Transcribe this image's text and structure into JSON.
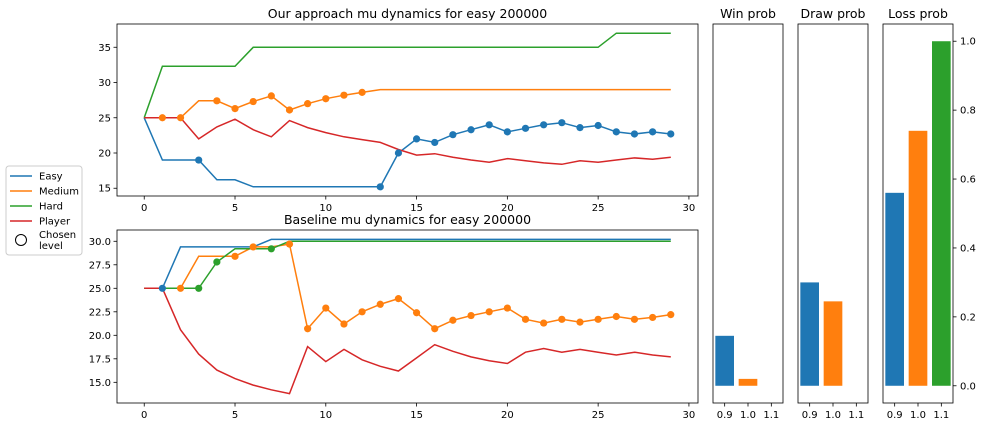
{
  "colors": {
    "easy": "#1f77b4",
    "medium": "#ff7f0e",
    "hard": "#2ca02c",
    "player": "#d62728"
  },
  "legend": {
    "placement": "left",
    "entries": [
      "Easy",
      "Medium",
      "Hard",
      "Player"
    ],
    "chosen_label": [
      "Chosen",
      "level"
    ]
  },
  "chart_data": [
    {
      "type": "line",
      "title": "Our approach mu dynamics for easy 200000",
      "xlim": [
        -1.5,
        30.5
      ],
      "ylim": [
        13.9,
        38.3
      ],
      "xticks": [
        0,
        5,
        10,
        15,
        20,
        25,
        30
      ],
      "yticks": [
        15,
        20,
        25,
        30,
        35
      ],
      "x": [
        0,
        1,
        2,
        3,
        4,
        5,
        6,
        7,
        8,
        9,
        10,
        11,
        12,
        13,
        14,
        15,
        16,
        17,
        18,
        19,
        20,
        21,
        22,
        23,
        24,
        25,
        26,
        27,
        28,
        29
      ],
      "series": [
        {
          "name": "Easy",
          "color_key": "easy",
          "values": [
            25,
            19,
            19,
            19,
            16.2,
            16.2,
            15.2,
            15.2,
            15.2,
            15.2,
            15.2,
            15.2,
            15.2,
            15.2,
            20,
            22,
            21.5,
            22.6,
            23.3,
            24,
            23,
            23.5,
            24,
            24.3,
            23.6,
            23.9,
            23,
            22.7,
            23,
            22.7
          ]
        },
        {
          "name": "Medium",
          "color_key": "medium",
          "values": [
            25,
            25,
            25,
            27.4,
            27.4,
            26.3,
            27.3,
            28.1,
            26.1,
            27,
            27.7,
            28.2,
            28.6,
            29,
            29,
            29,
            29,
            29,
            29,
            29,
            29,
            29,
            29,
            29,
            29,
            29,
            29,
            29,
            29,
            29
          ]
        },
        {
          "name": "Hard",
          "color_key": "hard",
          "values": [
            25,
            32.3,
            32.3,
            32.3,
            32.3,
            32.3,
            35,
            35,
            35,
            35,
            35,
            35,
            35,
            35,
            35,
            35,
            35,
            35,
            35,
            35,
            35,
            35,
            35,
            35,
            35,
            35,
            37,
            37,
            37,
            37
          ]
        },
        {
          "name": "Player",
          "color_key": "player",
          "values": [
            25,
            25,
            25,
            22,
            23.7,
            24.8,
            23.3,
            22.3,
            24.6,
            23.6,
            22.9,
            22.3,
            21.9,
            21.5,
            20.5,
            19.7,
            19.9,
            19.4,
            19,
            18.7,
            19.2,
            18.9,
            18.6,
            18.4,
            18.9,
            18.7,
            19,
            19.3,
            19.1,
            19.4
          ]
        }
      ],
      "chosen": [
        {
          "x": 1,
          "y": 25,
          "color_key": "medium"
        },
        {
          "x": 2,
          "y": 25,
          "color_key": "medium"
        },
        {
          "x": 3,
          "y": 19,
          "color_key": "easy"
        },
        {
          "x": 4,
          "y": 27.4,
          "color_key": "medium"
        },
        {
          "x": 5,
          "y": 26.3,
          "color_key": "medium"
        },
        {
          "x": 6,
          "y": 27.3,
          "color_key": "medium"
        },
        {
          "x": 7,
          "y": 28.1,
          "color_key": "medium"
        },
        {
          "x": 8,
          "y": 26.1,
          "color_key": "medium"
        },
        {
          "x": 9,
          "y": 27,
          "color_key": "medium"
        },
        {
          "x": 10,
          "y": 27.7,
          "color_key": "medium"
        },
        {
          "x": 11,
          "y": 28.2,
          "color_key": "medium"
        },
        {
          "x": 12,
          "y": 28.6,
          "color_key": "medium"
        },
        {
          "x": 13,
          "y": 15.2,
          "color_key": "easy"
        },
        {
          "x": 14,
          "y": 20,
          "color_key": "easy"
        },
        {
          "x": 15,
          "y": 22,
          "color_key": "easy"
        },
        {
          "x": 16,
          "y": 21.5,
          "color_key": "easy"
        },
        {
          "x": 17,
          "y": 22.6,
          "color_key": "easy"
        },
        {
          "x": 18,
          "y": 23.3,
          "color_key": "easy"
        },
        {
          "x": 19,
          "y": 24,
          "color_key": "easy"
        },
        {
          "x": 20,
          "y": 23,
          "color_key": "easy"
        },
        {
          "x": 21,
          "y": 23.5,
          "color_key": "easy"
        },
        {
          "x": 22,
          "y": 24,
          "color_key": "easy"
        },
        {
          "x": 23,
          "y": 24.3,
          "color_key": "easy"
        },
        {
          "x": 24,
          "y": 23.6,
          "color_key": "easy"
        },
        {
          "x": 25,
          "y": 23.9,
          "color_key": "easy"
        },
        {
          "x": 26,
          "y": 23,
          "color_key": "easy"
        },
        {
          "x": 27,
          "y": 22.7,
          "color_key": "easy"
        },
        {
          "x": 28,
          "y": 23,
          "color_key": "easy"
        },
        {
          "x": 29,
          "y": 22.7,
          "color_key": "easy"
        }
      ]
    },
    {
      "type": "line",
      "title": "Baseline mu dynamics for easy 200000",
      "xlim": [
        -1.5,
        30.5
      ],
      "ylim": [
        12.8,
        31.2
      ],
      "xticks": [
        0,
        5,
        10,
        15,
        20,
        25,
        30
      ],
      "yticks": [
        15.0,
        17.5,
        20.0,
        22.5,
        25.0,
        27.5,
        30.0
      ],
      "ytick_labels": [
        "15.0",
        "17.5",
        "20.0",
        "22.5",
        "25.0",
        "27.5",
        "30.0"
      ],
      "x": [
        0,
        1,
        2,
        3,
        4,
        5,
        6,
        7,
        8,
        9,
        10,
        11,
        12,
        13,
        14,
        15,
        16,
        17,
        18,
        19,
        20,
        21,
        22,
        23,
        24,
        25,
        26,
        27,
        28,
        29
      ],
      "series": [
        {
          "name": "Easy",
          "color_key": "easy",
          "values": [
            25,
            25,
            29.4,
            29.4,
            29.4,
            29.4,
            29.4,
            30.2,
            30.2,
            30.2,
            30.2,
            30.2,
            30.2,
            30.2,
            30.2,
            30.2,
            30.2,
            30.2,
            30.2,
            30.2,
            30.2,
            30.2,
            30.2,
            30.2,
            30.2,
            30.2,
            30.2,
            30.2,
            30.2,
            30.2
          ]
        },
        {
          "name": "Medium",
          "color_key": "medium",
          "values": [
            25,
            25,
            25,
            28.4,
            28.4,
            28.4,
            29.4,
            29.4,
            29.7,
            20.7,
            22.9,
            21.2,
            22.5,
            23.3,
            23.9,
            22.4,
            20.7,
            21.6,
            22.1,
            22.5,
            22.9,
            21.7,
            21.3,
            21.7,
            21.4,
            21.7,
            22,
            21.7,
            21.9,
            22.2
          ]
        },
        {
          "name": "Hard",
          "color_key": "hard",
          "values": [
            25,
            25,
            25,
            25,
            27.8,
            29.2,
            29.2,
            29.2,
            30,
            30,
            30,
            30,
            30,
            30,
            30,
            30,
            30,
            30,
            30,
            30,
            30,
            30,
            30,
            30,
            30,
            30,
            30,
            30,
            30,
            30
          ]
        },
        {
          "name": "Player",
          "color_key": "player",
          "values": [
            25,
            25,
            20.6,
            18,
            16.3,
            15.4,
            14.7,
            14.2,
            13.8,
            18.8,
            17.2,
            18.5,
            17.4,
            16.7,
            16.2,
            17.6,
            19,
            18.3,
            17.7,
            17.3,
            17,
            18.2,
            18.6,
            18.2,
            18.5,
            18.2,
            17.9,
            18.2,
            17.9,
            17.7
          ]
        }
      ],
      "chosen": [
        {
          "x": 1,
          "y": 25,
          "color_key": "easy"
        },
        {
          "x": 2,
          "y": 25,
          "color_key": "medium"
        },
        {
          "x": 3,
          "y": 25,
          "color_key": "hard"
        },
        {
          "x": 4,
          "y": 27.8,
          "color_key": "hard"
        },
        {
          "x": 5,
          "y": 28.4,
          "color_key": "medium"
        },
        {
          "x": 6,
          "y": 29.4,
          "color_key": "medium"
        },
        {
          "x": 7,
          "y": 29.2,
          "color_key": "hard"
        },
        {
          "x": 8,
          "y": 29.7,
          "color_key": "medium"
        },
        {
          "x": 9,
          "y": 20.7,
          "color_key": "medium"
        },
        {
          "x": 10,
          "y": 22.9,
          "color_key": "medium"
        },
        {
          "x": 11,
          "y": 21.2,
          "color_key": "medium"
        },
        {
          "x": 12,
          "y": 22.5,
          "color_key": "medium"
        },
        {
          "x": 13,
          "y": 23.3,
          "color_key": "medium"
        },
        {
          "x": 14,
          "y": 23.9,
          "color_key": "medium"
        },
        {
          "x": 15,
          "y": 22.4,
          "color_key": "medium"
        },
        {
          "x": 16,
          "y": 20.7,
          "color_key": "medium"
        },
        {
          "x": 17,
          "y": 21.6,
          "color_key": "medium"
        },
        {
          "x": 18,
          "y": 22.1,
          "color_key": "medium"
        },
        {
          "x": 19,
          "y": 22.5,
          "color_key": "medium"
        },
        {
          "x": 20,
          "y": 22.9,
          "color_key": "medium"
        },
        {
          "x": 21,
          "y": 21.7,
          "color_key": "medium"
        },
        {
          "x": 22,
          "y": 21.3,
          "color_key": "medium"
        },
        {
          "x": 23,
          "y": 21.7,
          "color_key": "medium"
        },
        {
          "x": 24,
          "y": 21.4,
          "color_key": "medium"
        },
        {
          "x": 25,
          "y": 21.7,
          "color_key": "medium"
        },
        {
          "x": 26,
          "y": 22,
          "color_key": "medium"
        },
        {
          "x": 27,
          "y": 21.7,
          "color_key": "medium"
        },
        {
          "x": 28,
          "y": 21.9,
          "color_key": "medium"
        },
        {
          "x": 29,
          "y": 22.2,
          "color_key": "medium"
        }
      ]
    },
    {
      "type": "bar",
      "title": "Win prob",
      "categories": [
        "0.9",
        "1.0",
        "1.1"
      ],
      "values": [
        0.145,
        0.02,
        0
      ],
      "bar_colors": [
        "easy",
        "medium",
        "hard"
      ],
      "ylim": [
        -0.05,
        1.05
      ]
    },
    {
      "type": "bar",
      "title": "Draw prob",
      "categories": [
        "0.9",
        "1.0",
        "1.1"
      ],
      "values": [
        0.3,
        0.245,
        0
      ],
      "bar_colors": [
        "easy",
        "medium",
        "hard"
      ],
      "ylim": [
        -0.05,
        1.05
      ]
    },
    {
      "type": "bar",
      "title": "Loss prob",
      "categories": [
        "0.9",
        "1.0",
        "1.1"
      ],
      "values": [
        0.56,
        0.74,
        1.0
      ],
      "bar_colors": [
        "easy",
        "medium",
        "hard"
      ],
      "ylim": [
        -0.05,
        1.05
      ],
      "right_axis_ticks": [
        0.0,
        0.2,
        0.4,
        0.6,
        0.8,
        1.0
      ],
      "right_axis_labels": [
        "0.0",
        "0.2",
        "0.4",
        "0.6",
        "0.8",
        "1.0"
      ]
    }
  ]
}
